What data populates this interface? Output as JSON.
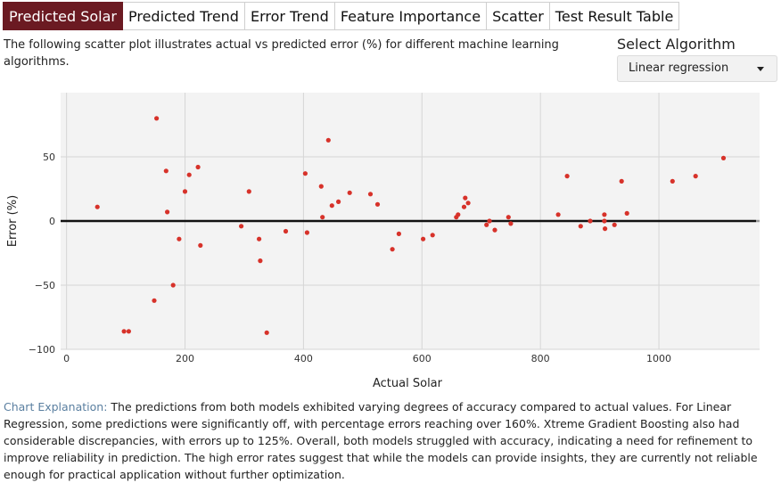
{
  "tabs": [
    {
      "label": "Predicted Solar",
      "active": true
    },
    {
      "label": "Predicted Trend",
      "active": false
    },
    {
      "label": "Error Trend",
      "active": false
    },
    {
      "label": "Feature Importance",
      "active": false
    },
    {
      "label": "Scatter",
      "active": false
    },
    {
      "label": "Test Result Table",
      "active": false
    }
  ],
  "description": "The following scatter plot illustrates actual vs predicted error (%) for different machine learning algorithms.",
  "algorithm": {
    "label": "Select Algorithm",
    "selected": "Linear regression"
  },
  "colors": {
    "accent": "#6b1a22",
    "point": "#d7322a",
    "explain_lead": "#5a7fa0"
  },
  "chart_data": {
    "type": "scatter",
    "xlabel": "Actual Solar",
    "ylabel": "Error (%)",
    "xlim": [
      -10,
      1170
    ],
    "ylim": [
      -100,
      100
    ],
    "xticks": [
      0,
      200,
      400,
      600,
      800,
      1000
    ],
    "yticks": [
      -100,
      -50,
      0,
      50
    ],
    "grid": true,
    "zero_line": true,
    "points": [
      [
        52,
        11
      ],
      [
        97,
        -86
      ],
      [
        105,
        -86
      ],
      [
        148,
        -62
      ],
      [
        152,
        80
      ],
      [
        168,
        39
      ],
      [
        170,
        7
      ],
      [
        180,
        -50
      ],
      [
        190,
        -14
      ],
      [
        200,
        23
      ],
      [
        207,
        36
      ],
      [
        222,
        42
      ],
      [
        226,
        -19
      ],
      [
        295,
        -4
      ],
      [
        308,
        23
      ],
      [
        325,
        -14
      ],
      [
        327,
        -31
      ],
      [
        338,
        -87
      ],
      [
        370,
        -8
      ],
      [
        403,
        37
      ],
      [
        406,
        -9
      ],
      [
        430,
        27
      ],
      [
        432,
        3
      ],
      [
        442,
        63
      ],
      [
        448,
        12
      ],
      [
        459,
        15
      ],
      [
        478,
        22
      ],
      [
        513,
        21
      ],
      [
        525,
        13
      ],
      [
        550,
        -22
      ],
      [
        561,
        -10
      ],
      [
        602,
        -14
      ],
      [
        618,
        -11
      ],
      [
        658,
        3
      ],
      [
        661,
        5
      ],
      [
        671,
        11
      ],
      [
        673,
        18
      ],
      [
        678,
        14
      ],
      [
        709,
        -3
      ],
      [
        714,
        0
      ],
      [
        723,
        -7
      ],
      [
        746,
        3
      ],
      [
        750,
        -2
      ],
      [
        830,
        5
      ],
      [
        845,
        35
      ],
      [
        868,
        -4
      ],
      [
        884,
        0
      ],
      [
        908,
        0
      ],
      [
        908,
        5
      ],
      [
        909,
        -6
      ],
      [
        925,
        -3
      ],
      [
        937,
        31
      ],
      [
        946,
        6
      ],
      [
        1023,
        31
      ],
      [
        1062,
        35
      ],
      [
        1109,
        49
      ]
    ]
  },
  "explanation": {
    "lead": "Chart Explanation:",
    "text": " The predictions from both models exhibited varying degrees of accuracy compared to actual values. For Linear Regression, some predictions were significantly off, with percentage errors reaching over 160%. Xtreme Gradient Boosting also had considerable discrepancies, with errors up to 125%. Overall, both models struggled with accuracy, indicating a need for refinement to improve reliability in prediction. The high error rates suggest that while the models can provide insights, they are currently not reliable enough for practical application without further optimization."
  }
}
